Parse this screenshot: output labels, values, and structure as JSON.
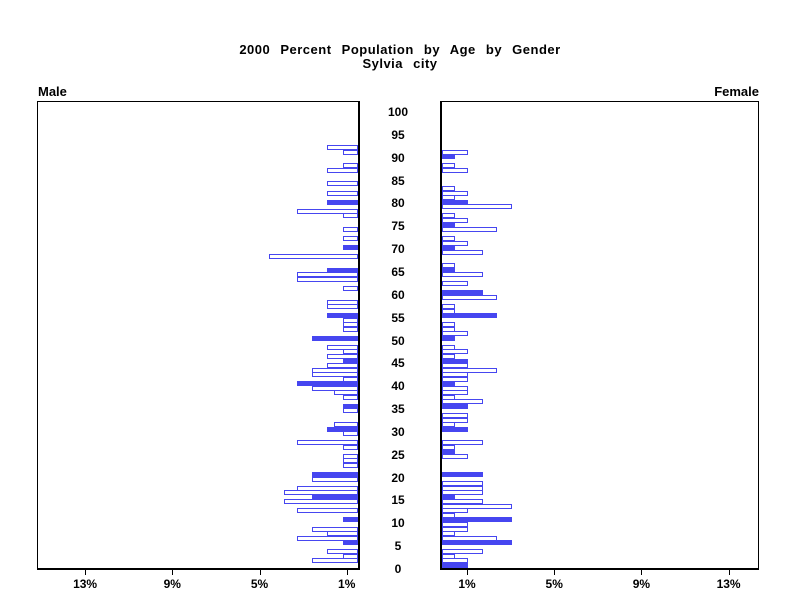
{
  "chart_data": {
    "type": "bar",
    "subtype": "population-pyramid",
    "title": "2000 Percent Population by Age by Gender",
    "subtitle": "Sylvia city",
    "left_panel_label": "Male",
    "right_panel_label": "Female",
    "unit": "percent of population",
    "age_axis": {
      "min": 0,
      "max": 100,
      "tick_interval": 5,
      "ticks": [
        0,
        5,
        10,
        15,
        20,
        25,
        30,
        35,
        40,
        45,
        50,
        55,
        60,
        65,
        70,
        75,
        80,
        85,
        90,
        95,
        100
      ]
    },
    "pct_axis": {
      "ticks": [
        {
          "value": 1,
          "label": "1%"
        },
        {
          "value": 5,
          "label": "5%"
        },
        {
          "value": 9,
          "label": "9%"
        },
        {
          "value": 13,
          "label": "13%"
        }
      ],
      "male_label_order": [
        "13%",
        "9%",
        "5%",
        "1%"
      ],
      "female_label_order": [
        "1%",
        "5%",
        "9%",
        "13%"
      ]
    },
    "bar_color": "#4646f0",
    "highlight_rule": "bars for ages divisible by 5 are solid filled; all other ages are white bars with blue outline",
    "series": [
      {
        "name": "Male",
        "side": "left",
        "values_by_age": [
          0,
          2.1,
          0.7,
          1.4,
          0,
          0.7,
          2.8,
          1.4,
          2.1,
          0,
          0.7,
          0,
          2.8,
          0,
          3.4,
          2.1,
          3.4,
          2.8,
          0,
          2.1,
          2.1,
          0,
          0.7,
          0.7,
          0.7,
          0,
          0.7,
          2.8,
          0,
          0.7,
          1.4,
          1.1,
          0,
          0,
          0.7,
          0.7,
          0,
          0.7,
          1.1,
          2.1,
          2.8,
          0.7,
          2.1,
          2.1,
          1.4,
          0.7,
          1.4,
          0.7,
          1.4,
          0,
          2.1,
          0,
          0.7,
          0.7,
          0.7,
          1.4,
          0,
          1.4,
          1.4,
          0,
          0,
          0.7,
          0,
          2.8,
          2.8,
          1.4,
          0,
          0,
          4.1,
          0,
          0.7,
          0,
          0.7,
          0,
          0.7,
          0,
          0,
          0.7,
          2.8,
          0,
          1.4,
          0,
          1.4,
          0,
          1.4,
          0,
          0,
          1.4,
          0.7,
          0,
          0,
          0.7,
          1.4,
          0,
          0,
          0,
          0,
          0,
          0,
          0,
          0
        ]
      },
      {
        "name": "Female",
        "side": "right",
        "values_by_age": [
          1.2,
          1.2,
          0.6,
          1.9,
          0,
          3.2,
          2.5,
          0.6,
          1.2,
          1.2,
          3.2,
          0.6,
          1.2,
          3.2,
          1.9,
          0.6,
          1.9,
          1.9,
          1.9,
          0,
          1.9,
          0,
          0,
          0,
          1.2,
          0.6,
          0.6,
          1.9,
          0,
          0,
          1.2,
          0.6,
          1.2,
          1.2,
          0,
          1.2,
          1.9,
          0.6,
          1.2,
          1.2,
          0.6,
          1.2,
          1.2,
          2.5,
          1.2,
          1.2,
          0.6,
          1.2,
          0.6,
          0,
          0.6,
          1.2,
          0.6,
          0.6,
          0,
          2.5,
          0.6,
          0.6,
          0,
          2.5,
          1.9,
          0,
          1.2,
          0,
          1.9,
          0.6,
          0.6,
          0,
          0,
          1.9,
          0.6,
          1.2,
          0.6,
          0,
          2.5,
          0.6,
          1.2,
          0.6,
          0,
          3.2,
          1.2,
          0.6,
          1.2,
          0.6,
          0,
          0,
          0,
          1.2,
          0.6,
          0,
          0.6,
          1.2,
          0,
          0,
          0,
          0,
          0,
          0,
          0,
          0,
          0
        ]
      }
    ]
  }
}
